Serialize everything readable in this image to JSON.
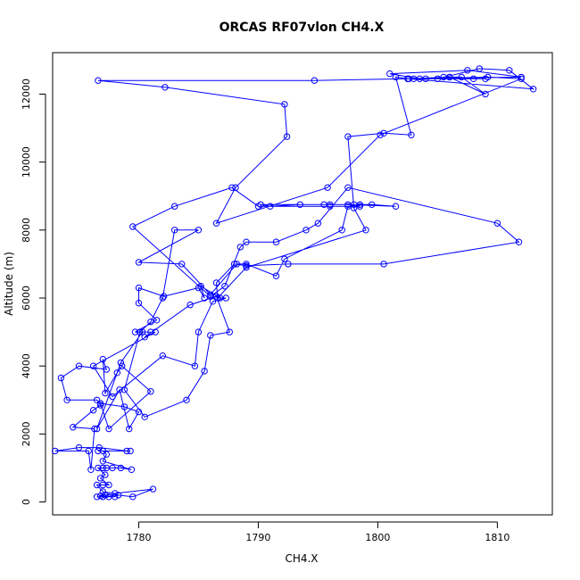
{
  "chart_data": {
    "type": "line",
    "title": "ORCAS RF07vlon CH4.X",
    "xlabel": "CH4.X",
    "ylabel": "Altitude (m)",
    "xlim": [
      1772.8,
      1814.6
    ],
    "ylim": [
      -380,
      13220
    ],
    "x_ticks": [
      1780,
      1790,
      1800,
      1810
    ],
    "y_ticks": [
      0,
      2000,
      4000,
      6000,
      8000,
      10000,
      12000
    ],
    "line_color": "#0000ff",
    "marker": "open-circle",
    "grid": false,
    "series": [
      {
        "points": [
          [
            1777.0,
            150
          ],
          [
            1776.5,
            150
          ],
          [
            1777.5,
            150
          ],
          [
            1778.0,
            150
          ],
          [
            1776.8,
            180
          ],
          [
            1777.2,
            200
          ],
          [
            1778.3,
            200
          ],
          [
            1779.5,
            150
          ],
          [
            1781.2,
            380
          ],
          [
            1778.0,
            250
          ],
          [
            1777.0,
            300
          ],
          [
            1776.5,
            500
          ],
          [
            1777.0,
            500
          ],
          [
            1777.5,
            500
          ],
          [
            1776.8,
            700
          ],
          [
            1777.2,
            800
          ],
          [
            1776.6,
            1000
          ],
          [
            1777.0,
            1000
          ],
          [
            1777.3,
            1000
          ],
          [
            1777.8,
            1000
          ],
          [
            1778.5,
            1000
          ],
          [
            1779.4,
            950
          ],
          [
            1777.0,
            1200
          ],
          [
            1777.3,
            1400
          ],
          [
            1777.0,
            1500
          ],
          [
            1776.6,
            1500
          ],
          [
            1779.3,
            1500
          ],
          [
            1779.0,
            1500
          ],
          [
            1776.7,
            1600
          ],
          [
            1775.0,
            1600
          ],
          [
            1773.0,
            1500
          ],
          [
            1775.8,
            1500
          ],
          [
            1776.0,
            950
          ],
          [
            1776.3,
            2150
          ],
          [
            1774.5,
            2200
          ],
          [
            1776.2,
            2700
          ],
          [
            1776.8,
            2850
          ],
          [
            1776.5,
            3000
          ],
          [
            1774.0,
            3000
          ],
          [
            1773.5,
            3650
          ],
          [
            1775.0,
            4000
          ],
          [
            1777.3,
            3900
          ],
          [
            1777.0,
            4200
          ],
          [
            1777.2,
            3200
          ],
          [
            1778.2,
            3800
          ],
          [
            1778.6,
            4000
          ],
          [
            1781.0,
            3250
          ],
          [
            1777.5,
            2150
          ],
          [
            1776.8,
            2900
          ],
          [
            1778.8,
            2800
          ],
          [
            1780.0,
            2650
          ],
          [
            1779.2,
            2150
          ],
          [
            1778.4,
            3300
          ],
          [
            1776.5,
            2150
          ],
          [
            1778.5,
            4100
          ],
          [
            1780.3,
            5000
          ],
          [
            1781.0,
            5000
          ],
          [
            1779.7,
            5000
          ],
          [
            1781.5,
            5350
          ],
          [
            1780.0,
            5850
          ],
          [
            1780.0,
            6300
          ],
          [
            1782.1,
            6050
          ],
          [
            1785.0,
            6300
          ],
          [
            1785.5,
            6000
          ],
          [
            1785.2,
            6350
          ],
          [
            1786.8,
            6000
          ],
          [
            1787.3,
            6000
          ],
          [
            1786.2,
            5900
          ],
          [
            1785.0,
            5000
          ],
          [
            1784.7,
            4000
          ],
          [
            1782.0,
            4300
          ],
          [
            1777.8,
            3100
          ],
          [
            1776.2,
            4000
          ],
          [
            1781.4,
            5000
          ],
          [
            1780.5,
            4850
          ],
          [
            1784.3,
            5800
          ],
          [
            1786.5,
            6050
          ],
          [
            1787.6,
            5000
          ],
          [
            1786.0,
            4900
          ],
          [
            1785.5,
            3850
          ],
          [
            1784.0,
            3000
          ],
          [
            1780.5,
            2500
          ],
          [
            1778.8,
            3300
          ],
          [
            1780.1,
            5000
          ],
          [
            1781.0,
            5300
          ],
          [
            1782.0,
            6000
          ],
          [
            1783.0,
            8000
          ],
          [
            1785.0,
            8000
          ],
          [
            1780.0,
            7050
          ],
          [
            1783.6,
            7000
          ],
          [
            1786.0,
            6100
          ],
          [
            1788.2,
            7000
          ],
          [
            1789.0,
            7000
          ],
          [
            1791.5,
            6650
          ],
          [
            1792.2,
            7150
          ],
          [
            1797.0,
            8000
          ],
          [
            1797.5,
            8700
          ],
          [
            1798.5,
            8750
          ],
          [
            1799.5,
            8750
          ],
          [
            1801.5,
            8700
          ],
          [
            1797.5,
            8750
          ],
          [
            1790.2,
            8750
          ],
          [
            1791.0,
            8700
          ],
          [
            1793.5,
            8750
          ],
          [
            1795.5,
            8750
          ],
          [
            1796.0,
            8750
          ],
          [
            1798.0,
            8750
          ],
          [
            1798.5,
            8700
          ],
          [
            1796.0,
            8700
          ],
          [
            1790.0,
            8700
          ],
          [
            1787.8,
            9250
          ],
          [
            1783.0,
            8700
          ],
          [
            1779.5,
            8100
          ],
          [
            1786.0,
            6050
          ],
          [
            1787.2,
            6350
          ],
          [
            1788.5,
            7500
          ],
          [
            1789.0,
            7650
          ],
          [
            1791.5,
            7650
          ],
          [
            1794.0,
            8000
          ],
          [
            1795.0,
            8200
          ],
          [
            1797.5,
            9250
          ],
          [
            1810.0,
            8200
          ],
          [
            1811.8,
            7650
          ],
          [
            1800.5,
            7000
          ],
          [
            1792.5,
            7000
          ],
          [
            1789.0,
            6950
          ],
          [
            1788.0,
            7000
          ],
          [
            1786.5,
            6450
          ],
          [
            1786.6,
            6000
          ],
          [
            1789.0,
            6900
          ],
          [
            1799.0,
            8000
          ],
          [
            1798.0,
            8650
          ],
          [
            1797.5,
            10750
          ],
          [
            1800.5,
            10850
          ],
          [
            1802.8,
            10800
          ],
          [
            1801.5,
            12500
          ],
          [
            1802.5,
            12450
          ],
          [
            1813.0,
            12150
          ],
          [
            1811.0,
            12700
          ],
          [
            1808.5,
            12750
          ],
          [
            1805.0,
            12450
          ],
          [
            1804.0,
            12450
          ],
          [
            1803.0,
            12450
          ],
          [
            1808.0,
            12450
          ],
          [
            1809.0,
            12450
          ],
          [
            1805.5,
            12500
          ],
          [
            1806.0,
            12500
          ],
          [
            1807.0,
            12500
          ],
          [
            1809.0,
            12000
          ],
          [
            1806.0,
            12500
          ],
          [
            1802.5,
            12450
          ],
          [
            1794.7,
            12400
          ],
          [
            1776.6,
            12400
          ],
          [
            1782.2,
            12200
          ],
          [
            1792.2,
            11700
          ],
          [
            1792.4,
            10750
          ],
          [
            1788.1,
            9250
          ],
          [
            1786.5,
            8200
          ],
          [
            1795.8,
            9250
          ],
          [
            1800.2,
            10800
          ],
          [
            1812.0,
            12450
          ],
          [
            1809.2,
            12500
          ],
          [
            1803.5,
            12450
          ],
          [
            1801.0,
            12600
          ],
          [
            1807.5,
            12700
          ],
          [
            1812.0,
            12500
          ],
          [
            1802.6,
            12450
          ]
        ]
      }
    ]
  }
}
